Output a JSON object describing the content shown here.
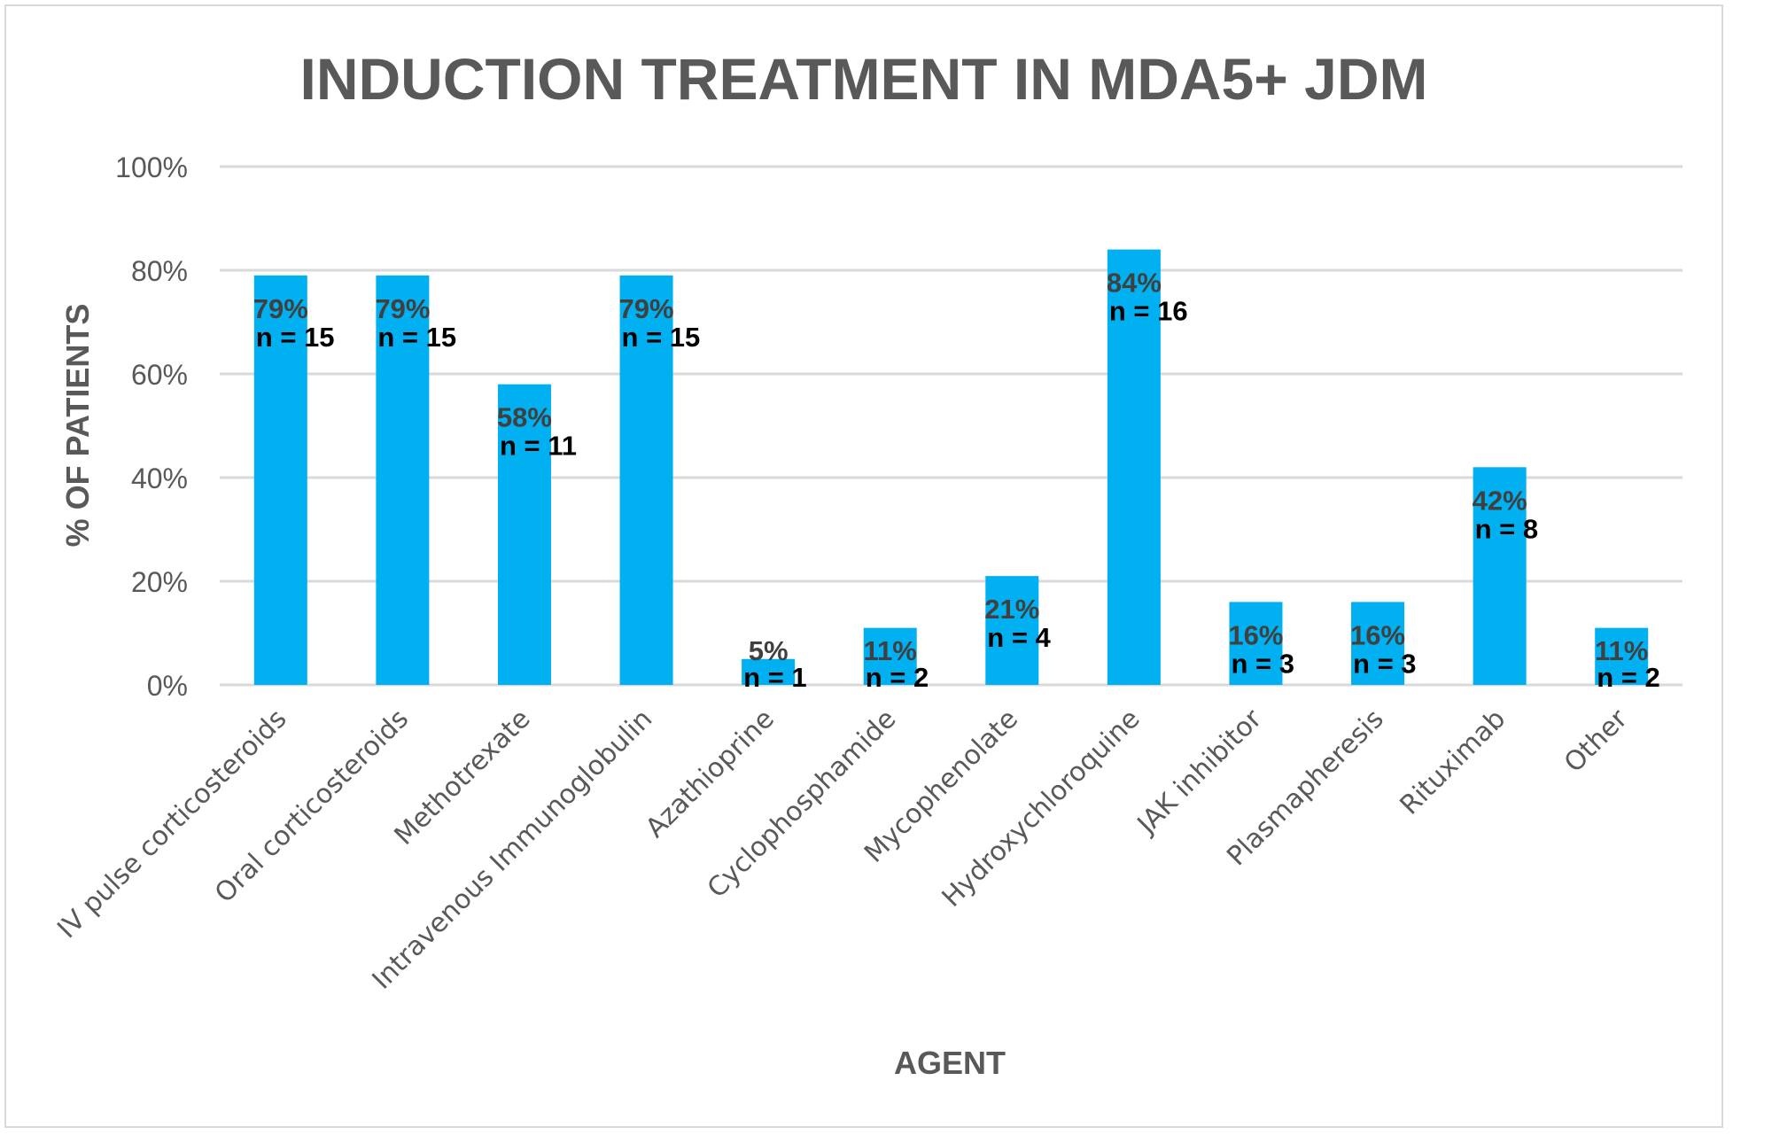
{
  "chart_data": {
    "type": "bar",
    "title": "INDUCTION TREATMENT IN MDA5+ JDM",
    "xlabel": "AGENT",
    "ylabel": "% OF PATIENTS",
    "ylim": [
      0,
      100
    ],
    "yticks": [
      "0%",
      "20%",
      "40%",
      "60%",
      "80%",
      "100%"
    ],
    "ytick_values": [
      0,
      20,
      40,
      60,
      80,
      100
    ],
    "grid": true,
    "legend": "none",
    "bar_color": "#00B0F0",
    "categories": [
      "IV pulse corticosteroids",
      "Oral corticosteroids",
      "Methotrexate",
      "Intravenous Immunoglobulin",
      "Azathioprine",
      "Cyclophosphamide",
      "Mycophenolate",
      "Hydroxychloroquine",
      "JAK inhibitor",
      "Plasmapheresis",
      "Rituximab",
      "Other"
    ],
    "values": [
      79,
      79,
      58,
      79,
      5,
      11,
      21,
      84,
      16,
      16,
      42,
      11
    ],
    "percent_labels": [
      "79%",
      "79%",
      "58%",
      "79%",
      "5%",
      "11%",
      "21%",
      "84%",
      "16%",
      "16%",
      "42%",
      "11%"
    ],
    "n_labels": [
      "n = 15",
      "n = 15",
      "n = 11",
      "n = 15",
      "n = 1",
      "n = 2",
      "n = 4",
      "n = 16",
      "n = 3",
      "n = 3",
      "n = 8",
      "n = 2"
    ],
    "counts": [
      15,
      15,
      11,
      15,
      1,
      2,
      4,
      16,
      3,
      3,
      8,
      2
    ]
  }
}
